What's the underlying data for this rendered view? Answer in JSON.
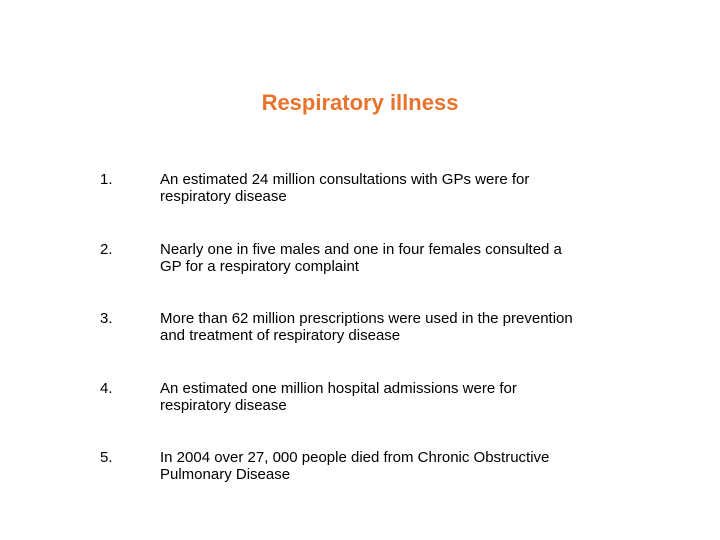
{
  "title_color": "#e8732c",
  "text_color": "#000000",
  "background_color": "#ffffff",
  "title": "Respiratory illness",
  "items": [
    {
      "num": "1.",
      "text": "An estimated 24 million consultations with GPs were for respiratory disease"
    },
    {
      "num": "2.",
      "text": "Nearly one in five males and one in four females consulted a GP for a respiratory complaint"
    },
    {
      "num": "3.",
      "text": "More than 62 million prescriptions were used in the prevention and treatment of respiratory disease"
    },
    {
      "num": "4.",
      "text": "An estimated one million hospital admissions were for respiratory disease"
    },
    {
      "num": "5.",
      "text": "In 2004  over 27, 000 people died from Chronic Obstructive Pulmonary Disease"
    }
  ]
}
